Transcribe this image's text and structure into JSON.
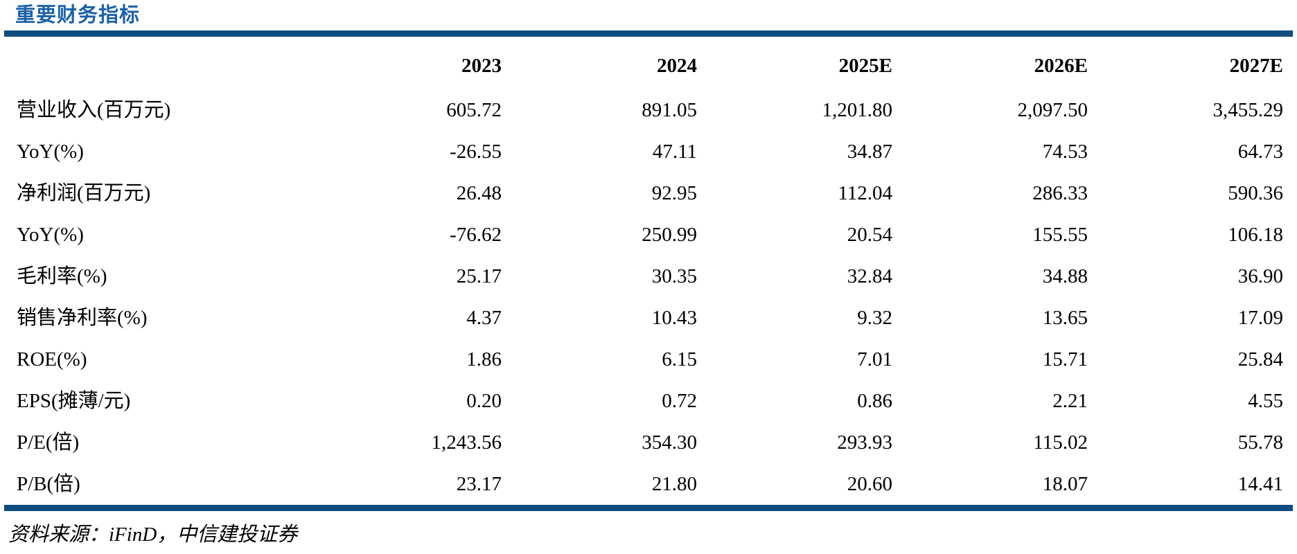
{
  "page": {
    "title": "重要财务指标"
  },
  "colors": {
    "title_blue": "#1B61A8",
    "rule_blue": "#0E4C7E",
    "text": "#000000",
    "background": "#FFFFFF"
  },
  "table": {
    "columns": [
      "",
      "2023",
      "2024",
      "2025E",
      "2026E",
      "2027E"
    ],
    "rows": [
      {
        "label": "营业收入(百万元)",
        "values": [
          "605.72",
          "891.05",
          "1,201.80",
          "2,097.50",
          "3,455.29"
        ]
      },
      {
        "label": "YoY(%)",
        "values": [
          "-26.55",
          "47.11",
          "34.87",
          "74.53",
          "64.73"
        ]
      },
      {
        "label": "净利润(百万元)",
        "values": [
          "26.48",
          "92.95",
          "112.04",
          "286.33",
          "590.36"
        ]
      },
      {
        "label": "YoY(%)",
        "values": [
          "-76.62",
          "250.99",
          "20.54",
          "155.55",
          "106.18"
        ]
      },
      {
        "label": "毛利率(%)",
        "values": [
          "25.17",
          "30.35",
          "32.84",
          "34.88",
          "36.90"
        ]
      },
      {
        "label": "销售净利率(%)",
        "values": [
          "4.37",
          "10.43",
          "9.32",
          "13.65",
          "17.09"
        ]
      },
      {
        "label": "ROE(%)",
        "values": [
          "1.86",
          "6.15",
          "7.01",
          "15.71",
          "25.84"
        ]
      },
      {
        "label": "EPS(摊薄/元)",
        "values": [
          "0.20",
          "0.72",
          "0.86",
          "2.21",
          "4.55"
        ]
      },
      {
        "label": "P/E(倍)",
        "values": [
          "1,243.56",
          "354.30",
          "293.93",
          "115.02",
          "55.78"
        ]
      },
      {
        "label": "P/B(倍)",
        "values": [
          "23.17",
          "21.80",
          "20.60",
          "18.07",
          "14.41"
        ]
      }
    ]
  },
  "footer": {
    "source_note": "资料来源：iFinD，中信建投证券"
  }
}
